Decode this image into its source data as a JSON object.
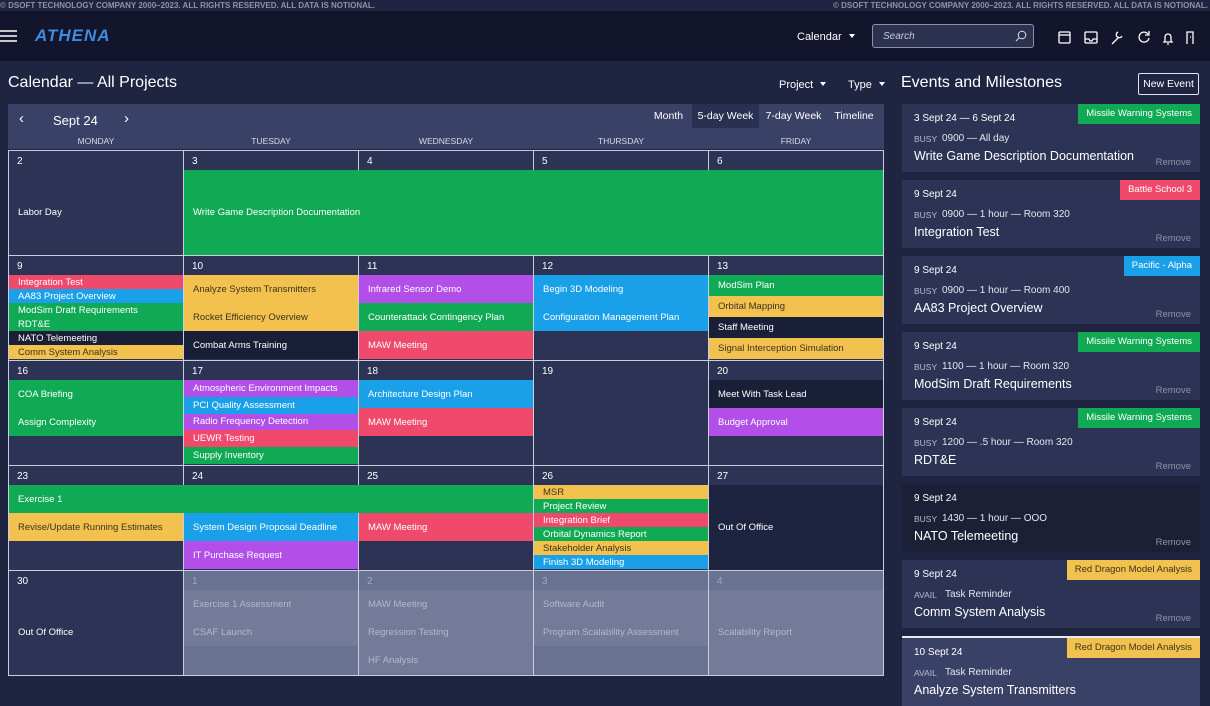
{
  "header": {
    "copyright_left": "© DSOFT TECHNOLOGY COMPANY 2000–2023. ALL RIGHTS RESERVED. ALL DATA IS NOTIONAL.",
    "copyright_right": "© DSOFT TECHNOLOGY COMPANY 2000–2023. ALL RIGHTS RESERVED. ALL DATA IS NOTIONAL.",
    "logo": "ATHENA",
    "nav_menu": "Calendar",
    "search_placeholder": "Search"
  },
  "page": {
    "title": "Calendar — All Projects",
    "filters": [
      "Project",
      "Type"
    ]
  },
  "calendar": {
    "month": "Sept 24",
    "views": [
      "Month",
      "5-day Week",
      "7-day Week",
      "Timeline"
    ],
    "weekdays": [
      "MONDAY",
      "TUESDAY",
      "WEDNESDAY",
      "THURSDAY",
      "FRIDAY"
    ],
    "weeks": [
      {
        "banners": [
          {
            "label": "Write Game Description Documentation",
            "color": "#10aa55"
          }
        ],
        "days": [
          {
            "date": "2",
            "events": [
              {
                "label": "Labor Day",
                "color": "#2d3354"
              }
            ]
          },
          {
            "date": "3",
            "events": []
          },
          {
            "date": "4",
            "events": []
          },
          {
            "date": "5",
            "events": []
          },
          {
            "date": "6",
            "events": []
          }
        ]
      },
      {
        "days": [
          {
            "date": "9",
            "events": [
              {
                "label": "Integration Test",
                "color": "#ef4a6b"
              },
              {
                "label": "AA83 Project Overview",
                "color": "#1aa0e8"
              },
              {
                "label": "ModSim Draft Requirements",
                "color": "#10aa55"
              },
              {
                "label": "RDT&E",
                "color": "#10aa55"
              },
              {
                "label": "NATO Telemeeting",
                "color": "#1a1f38"
              },
              {
                "label": "Comm System Analysis",
                "color": "#f2c14e"
              }
            ]
          },
          {
            "date": "10",
            "events": [
              {
                "label": "Analyze System Transmitters",
                "color": "#f2c14e"
              },
              {
                "label": "Rocket Efficiency Overview",
                "color": "#f2c14e"
              },
              {
                "label": "Combat Arms Training",
                "color": "#1a1f38"
              }
            ]
          },
          {
            "date": "11",
            "events": [
              {
                "label": "Infrared Sensor Demo",
                "color": "#b14fe8"
              },
              {
                "label": "Counterattack Contingency Plan",
                "color": "#10aa55"
              },
              {
                "label": "MAW Meeting",
                "color": "#ef4a6b"
              }
            ]
          },
          {
            "date": "12",
            "events": [
              {
                "label": "Begin 3D Modeling",
                "color": "#1aa0e8"
              },
              {
                "label": "Configuration Management Plan",
                "color": "#1aa0e8"
              }
            ]
          },
          {
            "date": "13",
            "events": [
              {
                "label": "ModSim Plan",
                "color": "#10aa55"
              },
              {
                "label": "Orbital Mapping",
                "color": "#f2c14e"
              },
              {
                "label": "Staff Meeting",
                "color": "#1a1f38"
              },
              {
                "label": "Signal Interception Simulation",
                "color": "#f2c14e"
              }
            ]
          }
        ]
      },
      {
        "days": [
          {
            "date": "16",
            "events": [
              {
                "label": "COA Briefing",
                "color": "#10aa55"
              },
              {
                "label": "Assign Complexity",
                "color": "#10aa55"
              }
            ]
          },
          {
            "date": "17",
            "events": [
              {
                "label": "Atmospheric Environment Impacts",
                "color": "#b14fe8"
              },
              {
                "label": "PCI Quality Assessment",
                "color": "#1aa0e8"
              },
              {
                "label": "Radio Frequency Detection",
                "color": "#b14fe8"
              },
              {
                "label": "UEWR Testing",
                "color": "#ef4a6b"
              },
              {
                "label": "Supply Inventory",
                "color": "#10aa55"
              }
            ]
          },
          {
            "date": "18",
            "events": [
              {
                "label": "Architecture Design Plan",
                "color": "#1aa0e8"
              },
              {
                "label": "MAW Meeting",
                "color": "#ef4a6b"
              }
            ]
          },
          {
            "date": "19",
            "events": []
          },
          {
            "date": "20",
            "events": [
              {
                "label": "Meet With Task Lead",
                "color": "#1a1f38"
              },
              {
                "label": "Budget Approval",
                "color": "#b14fe8"
              }
            ]
          }
        ]
      },
      {
        "banners": [
          {
            "label": "Exercise 1",
            "color": "#10aa55"
          }
        ],
        "days": [
          {
            "date": "23",
            "events": [
              {
                "label": "Revise/Update Running Estimates",
                "color": "#f2c14e"
              }
            ]
          },
          {
            "date": "24",
            "events": [
              {
                "label": "System Design Proposal Deadline",
                "color": "#1aa0e8"
              },
              {
                "label": "IT Purchase Request",
                "color": "#b14fe8"
              }
            ]
          },
          {
            "date": "25",
            "events": [
              {
                "label": "MAW Meeting",
                "color": "#ef4a6b"
              }
            ]
          },
          {
            "date": "26",
            "events": [
              {
                "label": "MSR",
                "color": "#f2c14e"
              },
              {
                "label": "Project Review",
                "color": "#10aa55"
              },
              {
                "label": "Integration Brief",
                "color": "#ef4a6b"
              },
              {
                "label": "Orbital Dynamics Report",
                "color": "#10aa55"
              },
              {
                "label": "Stakeholder Analysis",
                "color": "#f2c14e"
              },
              {
                "label": "Finish 3D Modeling",
                "color": "#1aa0e8"
              }
            ]
          },
          {
            "date": "27",
            "events": [
              {
                "label": "Out Of Office",
                "color": "#1e2340"
              }
            ]
          }
        ]
      },
      {
        "days": [
          {
            "date": "30",
            "events": [
              {
                "label": "Out Of Office",
                "color": "#2d3354"
              }
            ]
          },
          {
            "date": "1",
            "muted": true,
            "events": [
              {
                "label": "Exercise 1 Assessment",
                "color": "#737b98"
              },
              {
                "label": "CSAF Launch",
                "color": "#737b98"
              }
            ]
          },
          {
            "date": "2",
            "muted": true,
            "events": [
              {
                "label": "MAW Meeting",
                "color": "#737b98"
              },
              {
                "label": "Regression Testing",
                "color": "#737b98"
              },
              {
                "label": "HF Analysis",
                "color": "#737b98"
              }
            ]
          },
          {
            "date": "3",
            "muted": true,
            "events": [
              {
                "label": "Software Audit",
                "color": "#737b98"
              },
              {
                "label": "Program Scalability Assessment",
                "color": "#737b98"
              }
            ]
          },
          {
            "date": "4",
            "muted": true,
            "events": [
              {
                "label": "Scalability Report",
                "color": "#737b98"
              }
            ]
          }
        ]
      }
    ]
  },
  "panel": {
    "title": "Events and Milestones",
    "button": "New Event",
    "remove": "Remove",
    "items": [
      {
        "date": "3 Sept 24 — 6 Sept 24",
        "tag": "Missile Warning Systems",
        "tag_color": "#10aa55",
        "status": "BUSY",
        "detail": "0900 — All day",
        "title": "Write Game Description Documentation"
      },
      {
        "date": "9 Sept 24",
        "tag": "Battle School 3",
        "tag_color": "#ef4a6b",
        "status": "BUSY",
        "detail": "0900 — 1 hour — Room 320",
        "title": "Integration Test"
      },
      {
        "date": "9 Sept 24",
        "tag": "Pacific - Alpha",
        "tag_color": "#1aa0e8",
        "status": "BUSY",
        "detail": "0900 — 1 hour — Room 400",
        "title": "AA83 Project Overview"
      },
      {
        "date": "9 Sept 24",
        "tag": "Missile Warning Systems",
        "tag_color": "#10aa55",
        "status": "BUSY",
        "detail": "1100 — 1 hour — Room 320",
        "title": "ModSim Draft Requirements"
      },
      {
        "date": "9 Sept 24",
        "tag": "Missile Warning Systems",
        "tag_color": "#10aa55",
        "status": "BUSY",
        "detail": "1200 — .5 hour — Room 320",
        "title": "RDT&E"
      },
      {
        "date": "9 Sept 24",
        "status": "BUSY",
        "detail": "1430 — 1 hour — OOO",
        "title": "NATO Telemeeting"
      },
      {
        "date": "9 Sept 24",
        "tag": "Red Dragon Model Analysis",
        "tag_color": "#f2c14e",
        "status": "AVAIL",
        "detail": "Task Reminder",
        "title": "Comm System Analysis"
      },
      {
        "date": "10 Sept 24",
        "tag": "Red Dragon Model Analysis",
        "tag_color": "#f2c14e",
        "status": "AVAIL",
        "detail": "Task Reminder",
        "title": "Analyze System Transmitters"
      }
    ]
  }
}
